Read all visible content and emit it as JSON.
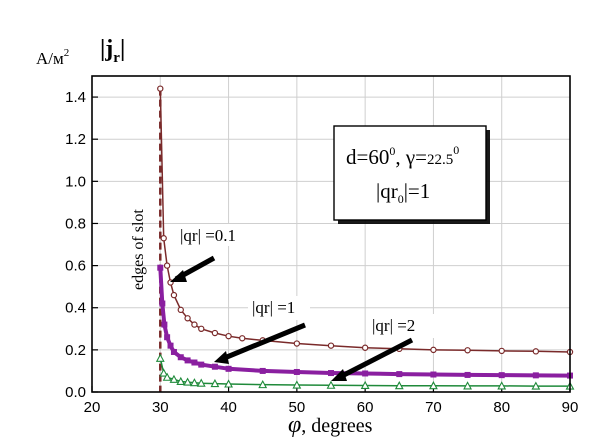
{
  "chart_data": {
    "type": "line",
    "title": "|j",
    "title_sub": "r",
    "title_close": "|",
    "yunit": "A/м",
    "yunit_sup": "2",
    "xlabel": "φ, degrees",
    "xlabel_sym": "φ",
    "xlabel_text": ", degrees",
    "xlim": [
      20,
      90
    ],
    "ylim": [
      0,
      1.5
    ],
    "xticks": [
      "20",
      "30",
      "40",
      "50",
      "60",
      "70",
      "80",
      "90"
    ],
    "yticks": [
      "0.0",
      "0.2",
      "0.4",
      "0.6",
      "0.8",
      "1.0",
      "1.2",
      "1.4"
    ],
    "grid": true,
    "vline_label": "edges of slot",
    "params_box": {
      "line1_a": "d=60",
      "line1_a_sup": "0",
      "line1_b": ", γ=",
      "line1_c": "22.5",
      "line1_c_sup": "0",
      "line2_a": "|qr",
      "line2_a_sub": "0",
      "line2_b": "|=1"
    },
    "series": [
      {
        "name": "|qr| =0.1",
        "marker": "circle",
        "color": "#7a2a2a",
        "x": [
          30,
          30.5,
          31,
          31.5,
          32,
          33,
          34,
          35,
          36,
          38,
          40,
          42,
          45,
          50,
          55,
          60,
          65,
          70,
          75,
          80,
          85,
          90
        ],
        "y": [
          1.44,
          0.73,
          0.6,
          0.52,
          0.46,
          0.39,
          0.35,
          0.32,
          0.3,
          0.28,
          0.265,
          0.255,
          0.245,
          0.23,
          0.22,
          0.21,
          0.205,
          0.2,
          0.198,
          0.195,
          0.193,
          0.19
        ]
      },
      {
        "name": "|qr| =1",
        "marker": "square",
        "color": "#8a1fa0",
        "x": [
          30,
          30.3,
          30.6,
          31,
          31.5,
          32,
          33,
          34,
          35,
          36,
          38,
          40,
          45,
          50,
          55,
          60,
          65,
          70,
          75,
          80,
          85,
          90
        ],
        "y": [
          0.59,
          0.42,
          0.32,
          0.26,
          0.22,
          0.19,
          0.165,
          0.15,
          0.14,
          0.13,
          0.12,
          0.11,
          0.1,
          0.095,
          0.09,
          0.088,
          0.085,
          0.083,
          0.081,
          0.08,
          0.079,
          0.078
        ]
      },
      {
        "name": "|qr| =2",
        "marker": "triangle",
        "color": "#1f8a3a",
        "x": [
          30,
          30.5,
          31,
          32,
          33,
          34,
          35,
          36,
          38,
          40,
          45,
          50,
          55,
          60,
          65,
          70,
          75,
          80,
          85,
          90
        ],
        "y": [
          0.16,
          0.09,
          0.07,
          0.06,
          0.05,
          0.047,
          0.044,
          0.042,
          0.04,
          0.038,
          0.035,
          0.033,
          0.032,
          0.031,
          0.03,
          0.03,
          0.029,
          0.029,
          0.028,
          0.028
        ]
      }
    ]
  }
}
